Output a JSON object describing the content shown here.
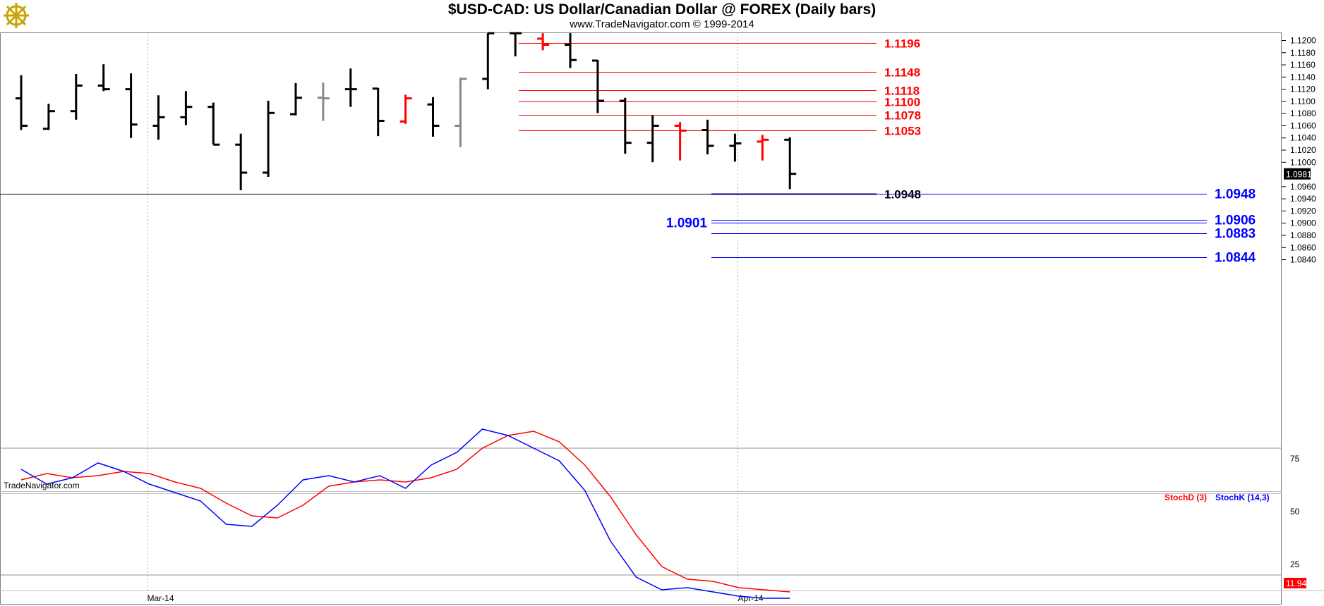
{
  "header": {
    "title": "$USD-CAD:  US Dollar/Canadian Dollar @ FOREX  (Daily bars)",
    "subtitle": "www.TradeNavigator.com © 1999-2014",
    "watermark": "TradeNavigator.com",
    "logo_icon": "ship-wheel-logo-icon"
  },
  "colors": {
    "background": "#ffffff",
    "bar_up_black": "#000000",
    "bar_red": "#ff0000",
    "bar_gray": "#888888",
    "resistance": "#ff0000",
    "support": "#0000ff",
    "stochD": "#ff0000",
    "stochK": "#0000ff",
    "grid": "#b0b0b0"
  },
  "chart_data": [
    {
      "type": "ohlc",
      "title": "$USD-CAD:  US Dollar/Canadian Dollar @ FOREX  (Daily bars)",
      "ylim": [
        1.0826,
        1.1212
      ],
      "yticks": [
        "1.1200",
        "1.1180",
        "1.1160",
        "1.1140",
        "1.1120",
        "1.1100",
        "1.1080",
        "1.1060",
        "1.1040",
        "1.1020",
        "1.1000",
        "1.0960",
        "1.0940",
        "1.0920",
        "1.0900",
        "1.0880",
        "1.0860",
        "1.0840"
      ],
      "xtick_labels": [
        "Mar-14",
        "Apr-14"
      ],
      "last_price": "1.0981",
      "bars": [
        {
          "o": 1.1105,
          "h": 1.1143,
          "l": 1.1053,
          "c": 1.106,
          "color": "black"
        },
        {
          "o": 1.1055,
          "h": 1.1096,
          "l": 1.1053,
          "c": 1.1084,
          "color": "black"
        },
        {
          "o": 1.1084,
          "h": 1.1145,
          "l": 1.107,
          "c": 1.1126,
          "color": "black"
        },
        {
          "o": 1.1126,
          "h": 1.1161,
          "l": 1.1117,
          "c": 1.112,
          "color": "black"
        },
        {
          "o": 1.112,
          "h": 1.1146,
          "l": 1.104,
          "c": 1.1062,
          "color": "black"
        },
        {
          "o": 1.106,
          "h": 1.111,
          "l": 1.1037,
          "c": 1.1074,
          "color": "black"
        },
        {
          "o": 1.1074,
          "h": 1.1117,
          "l": 1.1061,
          "c": 1.1091,
          "color": "black"
        },
        {
          "o": 1.1091,
          "h": 1.1098,
          "l": 1.1029,
          "c": 1.1029,
          "color": "black"
        },
        {
          "o": 1.1029,
          "h": 1.1047,
          "l": 1.0954,
          "c": 1.0983,
          "color": "black"
        },
        {
          "o": 1.0983,
          "h": 1.1101,
          "l": 1.0976,
          "c": 1.1081,
          "color": "black"
        },
        {
          "o": 1.1079,
          "h": 1.113,
          "l": 1.1077,
          "c": 1.1106,
          "color": "black"
        },
        {
          "o": 1.1106,
          "h": 1.1131,
          "l": 1.1068,
          "c": 1.1105,
          "color": "gray"
        },
        {
          "o": 1.112,
          "h": 1.1154,
          "l": 1.1091,
          "c": 1.112,
          "color": "black"
        },
        {
          "o": 1.1121,
          "h": 1.1122,
          "l": 1.1043,
          "c": 1.1068,
          "color": "black"
        },
        {
          "o": 1.1067,
          "h": 1.1111,
          "l": 1.1063,
          "c": 1.1105,
          "color": "red"
        },
        {
          "o": 1.1095,
          "h": 1.1107,
          "l": 1.1042,
          "c": 1.106,
          "color": "black"
        },
        {
          "o": 1.106,
          "h": 1.1139,
          "l": 1.1025,
          "c": 1.1137,
          "color": "gray"
        },
        {
          "o": 1.1137,
          "h": 1.1212,
          "l": 1.112,
          "c": 1.1212,
          "color": "black"
        },
        {
          "o": 1.1212,
          "h": 1.1212,
          "l": 1.1174,
          "c": 1.1212,
          "color": "black"
        },
        {
          "o": 1.1203,
          "h": 1.1212,
          "l": 1.1184,
          "c": 1.1193,
          "color": "red"
        },
        {
          "o": 1.1193,
          "h": 1.1212,
          "l": 1.1155,
          "c": 1.1168,
          "color": "black"
        },
        {
          "o": 1.1167,
          "h": 1.1168,
          "l": 1.1081,
          "c": 1.1101,
          "color": "black"
        },
        {
          "o": 1.1101,
          "h": 1.1106,
          "l": 1.1014,
          "c": 1.1032,
          "color": "black"
        },
        {
          "o": 1.1032,
          "h": 1.1077,
          "l": 1.1,
          "c": 1.106,
          "color": "black"
        },
        {
          "o": 1.106,
          "h": 1.1066,
          "l": 1.1003,
          "c": 1.1052,
          "color": "red"
        },
        {
          "o": 1.1053,
          "h": 1.107,
          "l": 1.1013,
          "c": 1.1027,
          "color": "black"
        },
        {
          "o": 1.1027,
          "h": 1.1047,
          "l": 1.1001,
          "c": 1.1031,
          "color": "black"
        },
        {
          "o": 1.1034,
          "h": 1.1045,
          "l": 1.1003,
          "c": 1.1037,
          "color": "red"
        },
        {
          "o": 1.1037,
          "h": 1.1041,
          "l": 1.0956,
          "c": 1.0981,
          "color": "black"
        }
      ],
      "levels": [
        {
          "value": 1.1196,
          "label": "1.1196",
          "color": "red",
          "span": "mid",
          "label_pos": "right-mid"
        },
        {
          "value": 1.1148,
          "label": "1.1148",
          "color": "red",
          "span": "mid",
          "label_pos": "right-mid"
        },
        {
          "value": 1.1118,
          "label": "1.1118",
          "color": "red",
          "span": "mid",
          "label_pos": "right-mid"
        },
        {
          "value": 1.11,
          "label": "1.1100",
          "color": "red",
          "span": "mid",
          "label_pos": "right-mid"
        },
        {
          "value": 1.1078,
          "label": "1.1078",
          "color": "red",
          "span": "mid",
          "label_pos": "right-mid"
        },
        {
          "value": 1.1053,
          "label": "1.1053",
          "color": "red",
          "span": "mid",
          "label_pos": "right-mid"
        },
        {
          "value": 1.0948,
          "label": "1.0948",
          "color": "black",
          "span": "full",
          "label_pos": "right-mid"
        },
        {
          "value": 1.0948,
          "label": "1.0948",
          "color": "blue",
          "span": "right",
          "label_pos": "right-end"
        },
        {
          "value": 1.0906,
          "label": "1.0906",
          "color": "blue",
          "span": "right",
          "label_pos": "right-end"
        },
        {
          "value": 1.0901,
          "label": "1.0901",
          "color": "blue",
          "span": "right",
          "label_pos": "left"
        },
        {
          "value": 1.0883,
          "label": "1.0883",
          "color": "blue",
          "span": "right",
          "label_pos": "right-end"
        },
        {
          "value": 1.0844,
          "label": "1.0844",
          "color": "blue",
          "span": "right",
          "label_pos": "right-end"
        }
      ]
    },
    {
      "type": "line",
      "title": "",
      "ylim": [
        0,
        100
      ],
      "yticks": [
        "75",
        "50",
        "25"
      ],
      "reference_lines": [
        80,
        20
      ],
      "legend": [
        "StochD (3)",
        "StochK (14,3)"
      ],
      "last_value": "11.94",
      "series": [
        {
          "name": "StochD (3)",
          "color": "red",
          "values": [
            65,
            68,
            66,
            67,
            69,
            68,
            64,
            61,
            54,
            48,
            47,
            53,
            62,
            64,
            65,
            64,
            66,
            70,
            80,
            86,
            88,
            83,
            72,
            57,
            39,
            24,
            18,
            17,
            14,
            13,
            12
          ]
        },
        {
          "name": "StochK (14,3)",
          "color": "blue",
          "values": [
            70,
            63,
            66,
            73,
            69,
            63,
            59,
            55,
            44,
            43,
            53,
            65,
            67,
            64,
            67,
            61,
            72,
            78,
            89,
            86,
            80,
            74,
            60,
            36,
            19,
            13,
            14,
            12,
            10,
            9,
            9
          ]
        }
      ]
    }
  ]
}
